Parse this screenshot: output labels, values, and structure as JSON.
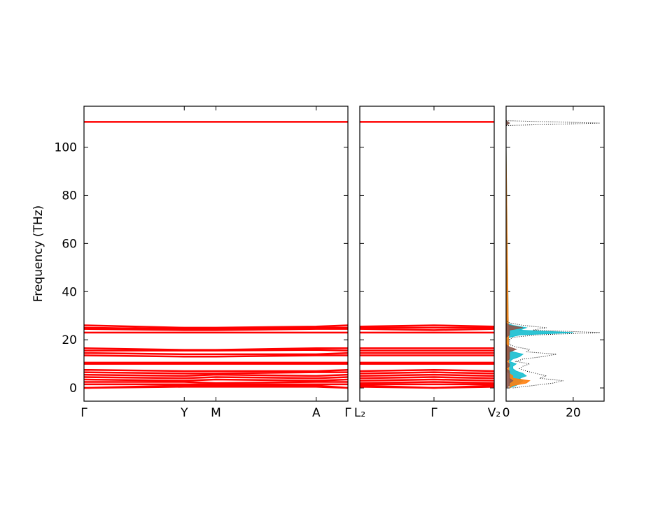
{
  "chart_data": [
    {
      "type": "band",
      "ylabel": "Frequency (THz)",
      "color": "#ff0000",
      "x": [
        0,
        0.38,
        0.5,
        0.88,
        1
      ],
      "xlim": [
        0,
        1
      ],
      "xticks": [
        {
          "value": 0,
          "label": "Γ"
        },
        {
          "value": 0.38,
          "label": "Y"
        },
        {
          "value": 0.5,
          "label": "M"
        },
        {
          "value": 0.88,
          "label": "A"
        },
        {
          "value": 1,
          "label": "Γ"
        }
      ],
      "ylim": [
        -5.5,
        117
      ],
      "yticks": [
        0,
        20,
        40,
        60,
        80,
        100
      ],
      "series": [
        {
          "values": [
            110.5,
            110.5,
            110.5,
            110.5,
            110.5
          ]
        },
        {
          "values": [
            26,
            25,
            25,
            25.5,
            26
          ]
        },
        {
          "values": [
            25,
            24.5,
            24.5,
            25,
            25
          ]
        },
        {
          "values": [
            24.5,
            24,
            24,
            24.5,
            24.5
          ]
        },
        {
          "values": [
            23,
            23,
            23,
            23,
            23
          ]
        },
        {
          "values": [
            16.5,
            15.8,
            15.8,
            16.5,
            16.5
          ]
        },
        {
          "values": [
            15.5,
            15.5,
            15.5,
            15.8,
            15.5
          ]
        },
        {
          "values": [
            14.5,
            14,
            14,
            14,
            14.5
          ]
        },
        {
          "values": [
            13.5,
            13,
            13,
            13.5,
            13.5
          ]
        },
        {
          "values": [
            10.5,
            10.5,
            10.5,
            10.5,
            10.5
          ]
        },
        {
          "values": [
            10,
            10,
            10,
            10,
            10
          ]
        },
        {
          "values": [
            7.5,
            7,
            7,
            7,
            7.5
          ]
        },
        {
          "values": [
            6.5,
            6,
            6,
            6.5,
            6.5
          ]
        },
        {
          "values": [
            5.5,
            5,
            5.5,
            5,
            5.5
          ]
        },
        {
          "values": [
            4.5,
            4,
            4.5,
            4,
            4.5
          ]
        },
        {
          "values": [
            3.5,
            3,
            3.5,
            3,
            3.5
          ]
        },
        {
          "values": [
            2.5,
            2.5,
            2,
            2.5,
            2.5
          ]
        },
        {
          "values": [
            1.5,
            1.5,
            1.5,
            1.5,
            1.5
          ]
        },
        {
          "values": [
            0,
            1,
            1,
            1,
            0
          ]
        },
        {
          "values": [
            0,
            0.5,
            0.5,
            0.5,
            0
          ]
        }
      ]
    },
    {
      "type": "band",
      "color": "#ff0000",
      "x": [
        0,
        0.552,
        1
      ],
      "xlim": [
        0,
        1
      ],
      "xticks": [
        {
          "value": 0,
          "label": "L₂"
        },
        {
          "value": 0.552,
          "label": "Γ"
        },
        {
          "value": 1,
          "label": "V₂"
        }
      ],
      "ylim": [
        -5.5,
        117
      ],
      "series": [
        {
          "values": [
            110.5,
            110.5,
            110.5
          ]
        },
        {
          "values": [
            25.5,
            26,
            25.5
          ]
        },
        {
          "values": [
            25,
            25,
            25
          ]
        },
        {
          "values": [
            24.5,
            24,
            24.5
          ]
        },
        {
          "values": [
            23,
            23,
            23
          ]
        },
        {
          "values": [
            16.5,
            16.5,
            16.5
          ]
        },
        {
          "values": [
            15.5,
            15.5,
            15.5
          ]
        },
        {
          "values": [
            14.5,
            14.5,
            14.5
          ]
        },
        {
          "values": [
            13.5,
            13.5,
            13.5
          ]
        },
        {
          "values": [
            10.5,
            10.5,
            10.5
          ]
        },
        {
          "values": [
            10,
            10,
            10
          ]
        },
        {
          "values": [
            7,
            7.5,
            7
          ]
        },
        {
          "values": [
            6,
            6.5,
            6
          ]
        },
        {
          "values": [
            5,
            5.5,
            5
          ]
        },
        {
          "values": [
            4,
            4.5,
            4
          ]
        },
        {
          "values": [
            3,
            3.5,
            3
          ]
        },
        {
          "values": [
            2,
            2.5,
            2
          ]
        },
        {
          "values": [
            1.5,
            1.5,
            1.5
          ]
        },
        {
          "values": [
            1,
            0,
            1
          ]
        },
        {
          "values": [
            0.5,
            0,
            0.5
          ]
        }
      ]
    },
    {
      "type": "dos",
      "frequencies": [
        0,
        1,
        2,
        3,
        4,
        5,
        6,
        7,
        8,
        9,
        10,
        11,
        12,
        13,
        14,
        15,
        16,
        17,
        18,
        19,
        20,
        21,
        22,
        23,
        24,
        25,
        26,
        27,
        28,
        109,
        110,
        111
      ],
      "xlim": [
        0,
        29.2
      ],
      "xticks": [
        0,
        20
      ],
      "ylim": [
        -5.5,
        117
      ],
      "series": [
        {
          "color": "#17becf",
          "values": [
            1,
            3,
            4,
            5,
            4,
            6,
            5,
            3,
            2,
            2,
            3,
            1,
            2,
            4,
            5,
            2,
            1,
            1,
            0,
            0,
            0,
            1,
            4,
            20,
            4,
            6,
            2,
            0,
            0,
            0,
            1,
            0
          ]
        },
        {
          "color": "#ff7f0e",
          "values": [
            1,
            2,
            6,
            7,
            2,
            2,
            1,
            0,
            0,
            0,
            0,
            0,
            0,
            0,
            0,
            0,
            0,
            0,
            0,
            0,
            0,
            0,
            0,
            0,
            0,
            0,
            0,
            0,
            0,
            0,
            0,
            0
          ]
        },
        {
          "color": "#8c564b",
          "values": [
            0,
            1,
            1,
            2,
            1,
            1,
            1,
            1,
            0,
            1,
            1,
            0,
            1,
            1,
            1,
            1,
            3,
            1,
            0,
            0,
            0,
            0,
            1,
            1,
            1,
            5,
            1,
            0,
            0,
            0,
            1,
            0
          ]
        },
        {
          "color": "#000000",
          "values": [
            2,
            8,
            14,
            17,
            10,
            12,
            9,
            6,
            4,
            5,
            7,
            3,
            5,
            11,
            15,
            6,
            7,
            3,
            1,
            1,
            1,
            2,
            9,
            28,
            8,
            12,
            5,
            1,
            0,
            0,
            28,
            0
          ]
        }
      ]
    }
  ]
}
